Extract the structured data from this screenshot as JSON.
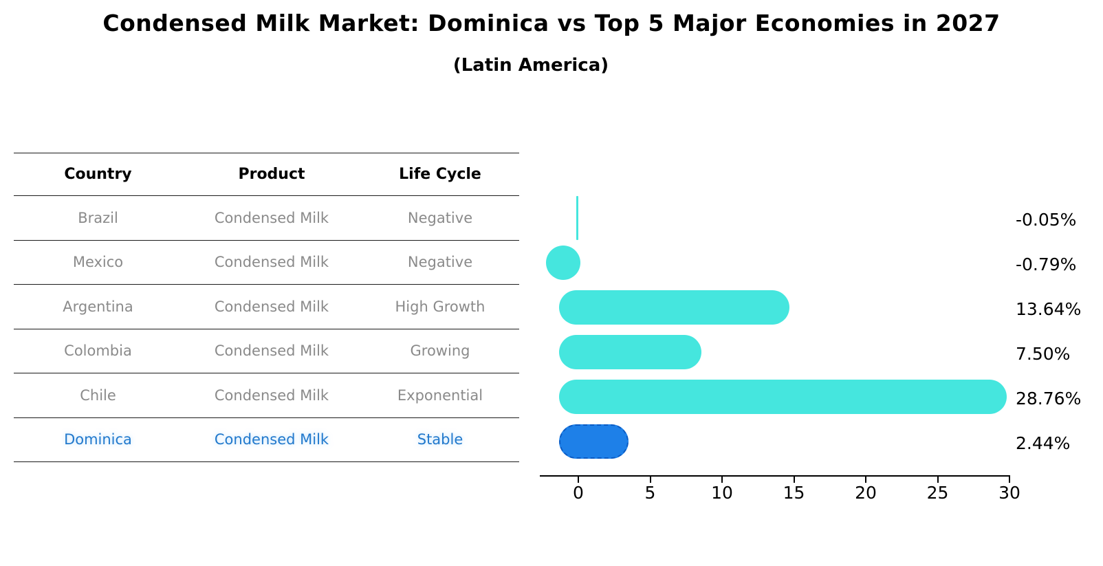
{
  "title": "Condensed Milk Market: Dominica vs Top 5 Major Economies in 2027",
  "subtitle": "(Latin America)",
  "table": {
    "headers": [
      "Country",
      "Product",
      "Life Cycle"
    ],
    "rows": [
      {
        "country": "Brazil",
        "product": "Condensed Milk",
        "life_cycle": "Negative",
        "highlight": false
      },
      {
        "country": "Mexico",
        "product": "Condensed Milk",
        "life_cycle": "Negative",
        "highlight": false
      },
      {
        "country": "Argentina",
        "product": "Condensed Milk",
        "life_cycle": "High Growth",
        "highlight": false
      },
      {
        "country": "Colombia",
        "product": "Condensed Milk",
        "life_cycle": "Growing",
        "highlight": false
      },
      {
        "country": "Chile",
        "product": "Condensed Milk",
        "life_cycle": "Exponential",
        "highlight": false
      },
      {
        "country": "Dominica",
        "product": "Condensed Milk",
        "life_cycle": "Stable",
        "highlight": true
      }
    ]
  },
  "chart_data": {
    "type": "bar",
    "orientation": "horizontal",
    "title": "Condensed Milk Market: Dominica vs Top 5 Major Economies in 2027",
    "subtitle": "(Latin America)",
    "categories": [
      "Brazil",
      "Mexico",
      "Argentina",
      "Colombia",
      "Chile",
      "Dominica"
    ],
    "values": [
      -0.05,
      -0.79,
      13.64,
      7.5,
      28.76,
      2.44
    ],
    "value_labels": [
      "-0.05%",
      "-0.79%",
      "13.64%",
      "7.50%",
      "28.76%",
      "2.44%"
    ],
    "unit": "percent",
    "x_ticks": [
      0,
      5,
      10,
      15,
      20,
      25,
      30
    ],
    "xlim": [
      0,
      30
    ],
    "grid": false,
    "legend": "none",
    "bar_color": "#45e6de",
    "highlight_color": "#1e80e8",
    "highlight_index": 5,
    "highlight_category": "Dominica"
  }
}
